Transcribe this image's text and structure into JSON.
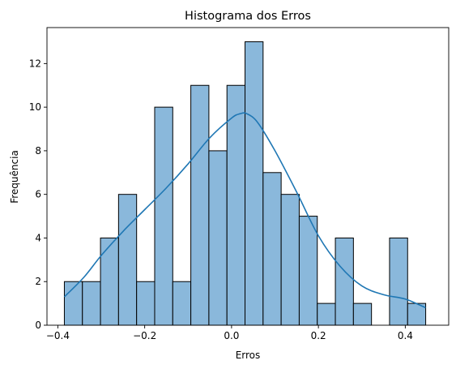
{
  "chart_data": {
    "type": "bar",
    "title": "Histograma dos Erros",
    "xlabel": "Erros",
    "ylabel": "Frequência",
    "xlim": [
      -0.425,
      0.5
    ],
    "ylim": [
      0,
      13.65
    ],
    "bin_edges": [
      -0.385,
      -0.3434,
      -0.3018,
      -0.2602,
      -0.2186,
      -0.177,
      -0.1354,
      -0.0938,
      -0.0522,
      -0.0106,
      0.031,
      0.0726,
      0.1142,
      0.1558,
      0.1974,
      0.239,
      0.2806,
      0.3222,
      0.3638,
      0.4054,
      0.447
    ],
    "values": [
      2,
      2,
      4,
      6,
      2,
      10,
      2,
      11,
      8,
      11,
      13,
      7,
      6,
      5,
      1,
      4,
      1,
      0,
      4,
      1
    ],
    "kde": {
      "x": [
        -0.385,
        -0.34,
        -0.3,
        -0.25,
        -0.2,
        -0.15,
        -0.1,
        -0.05,
        0.0,
        0.02,
        0.035,
        0.06,
        0.1,
        0.15,
        0.2,
        0.25,
        0.3,
        0.35,
        0.4,
        0.447
      ],
      "y": [
        1.3,
        2.2,
        3.2,
        4.3,
        5.3,
        6.3,
        7.4,
        8.6,
        9.5,
        9.7,
        9.7,
        9.3,
        8.0,
        6.1,
        4.1,
        2.7,
        1.8,
        1.4,
        1.2,
        0.8
      ]
    },
    "x_ticks": [
      -0.4,
      -0.2,
      0.0,
      0.2,
      0.4
    ],
    "x_tick_labels": [
      "−0.4",
      "−0.2",
      "0.0",
      "0.2",
      "0.4"
    ],
    "y_ticks": [
      0,
      2,
      4,
      6,
      8,
      10,
      12
    ],
    "y_tick_labels": [
      "0",
      "2",
      "4",
      "6",
      "8",
      "10",
      "12"
    ],
    "grid": false,
    "colors": {
      "bar_fill": "#8ab8db",
      "bar_edge": "#000000",
      "kde_line": "#1f77b4"
    }
  }
}
